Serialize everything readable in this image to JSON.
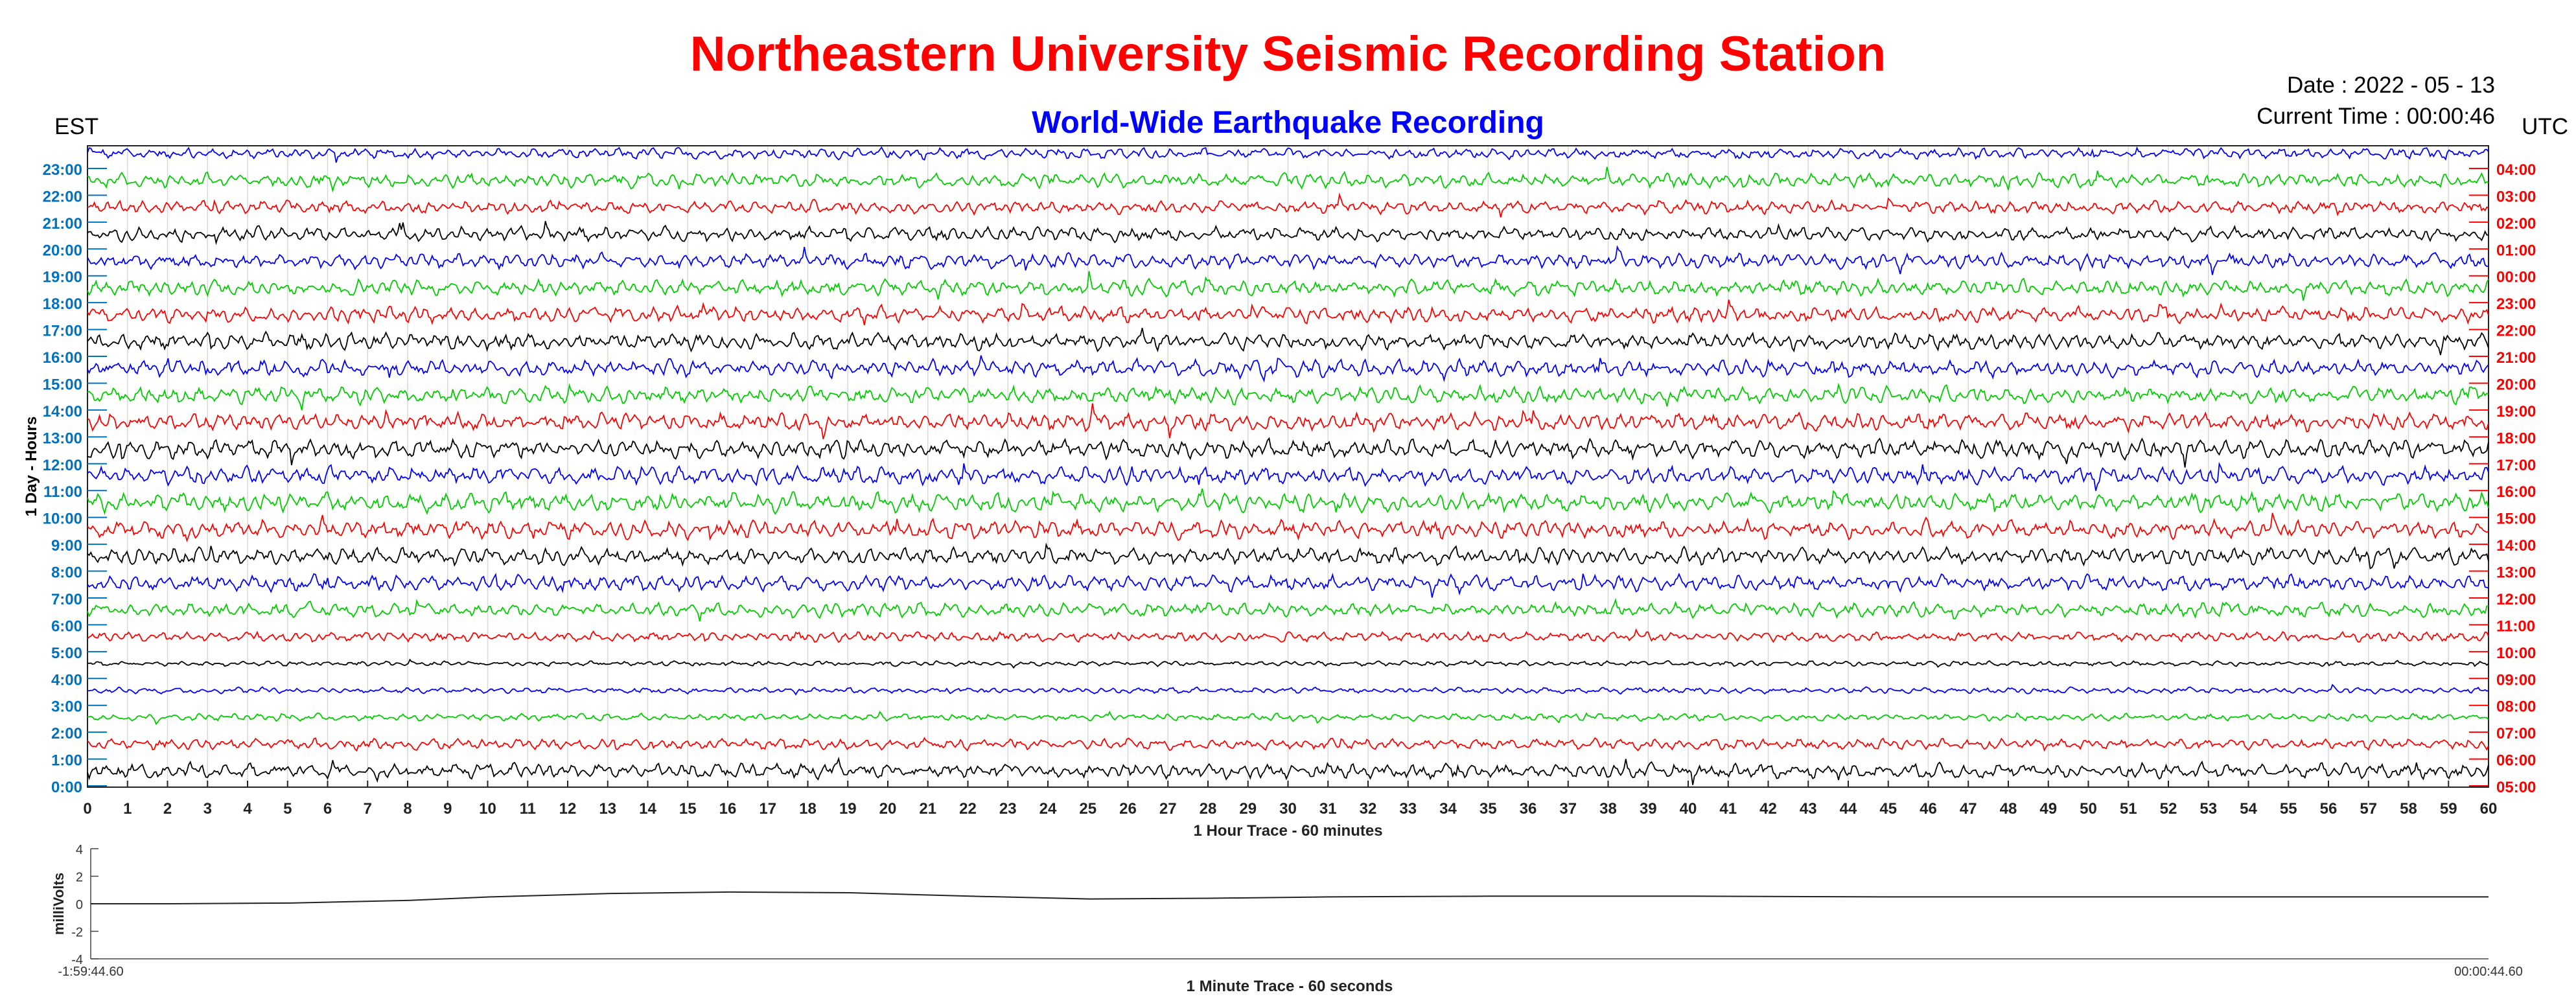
{
  "header": {
    "title": "Northeastern University Seismic Recording Station",
    "subtitle": "World-Wide Earthquake Recording",
    "date_text": "Date : 2022 - 05 - 13",
    "current_time_text": "Current Time : 00:00:46",
    "left_zone": "EST",
    "right_zone": "UTC"
  },
  "colors": {
    "title": "#ff0000",
    "subtitle": "#0000ff",
    "est_labels": "#0072bd",
    "utc_labels": "#ff0000",
    "trace_cycle": [
      "#0000ff",
      "#00cc00",
      "#ff0000",
      "#000000"
    ]
  },
  "chart_data": [
    {
      "type": "line",
      "xlabel": "1 Hour Trace - 60 minutes",
      "ylabel": "1 Day - Hours",
      "xlim": [
        0,
        60
      ],
      "x_ticks": [
        0,
        1,
        2,
        3,
        4,
        5,
        6,
        7,
        8,
        9,
        10,
        11,
        12,
        13,
        14,
        15,
        16,
        17,
        18,
        19,
        20,
        21,
        22,
        23,
        24,
        25,
        26,
        27,
        28,
        29,
        30,
        31,
        32,
        33,
        34,
        35,
        36,
        37,
        38,
        39,
        40,
        41,
        42,
        43,
        44,
        45,
        46,
        47,
        48,
        49,
        50,
        51,
        52,
        53,
        54,
        55,
        56,
        57,
        58,
        59,
        60
      ],
      "est_tick_labels": [
        "23:00",
        "22:00",
        "21:00",
        "20:00",
        "19:00",
        "18:00",
        "17:00",
        "16:00",
        "15:00",
        "14:00",
        "13:00",
        "12:00",
        "11:00",
        "10:00",
        "9:00",
        "8:00",
        "7:00",
        "6:00",
        "5:00",
        "4:00",
        "3:00",
        "2:00",
        "1:00",
        "0:00"
      ],
      "utc_tick_labels": [
        "04:00",
        "03:00",
        "02:00",
        "01:00",
        "00:00",
        "23:00",
        "22:00",
        "21:00",
        "20:00",
        "19:00",
        "18:00",
        "17:00",
        "16:00",
        "15:00",
        "14:00",
        "13:00",
        "12:00",
        "11:00",
        "10:00",
        "09:00",
        "08:00",
        "07:00",
        "06:00",
        "05:00"
      ],
      "trace_amplitude": [
        0.55,
        0.7,
        0.65,
        0.7,
        0.75,
        0.8,
        0.8,
        0.85,
        0.85,
        0.85,
        0.9,
        0.95,
        0.9,
        0.95,
        0.9,
        0.85,
        0.8,
        0.7,
        0.5,
        0.25,
        0.3,
        0.35,
        0.55,
        0.75
      ],
      "grid": true,
      "utc_offset_hours": 5
    },
    {
      "type": "line",
      "xlabel": "1 Minute Trace  - 60 seconds",
      "ylabel": "milliVolts",
      "ylim": [
        -4,
        4
      ],
      "y_ticks": [
        -4,
        -2,
        0,
        2,
        4
      ],
      "x_start_label": "-1:59:44.60",
      "x_end_label": "00:00:44.60",
      "x": [
        0,
        2,
        5,
        8,
        10,
        13,
        16,
        19,
        22,
        25,
        28,
        31,
        35,
        40,
        45,
        50,
        55,
        60
      ],
      "y": [
        0,
        0,
        0.05,
        0.25,
        0.5,
        0.75,
        0.85,
        0.8,
        0.55,
        0.35,
        0.4,
        0.5,
        0.55,
        0.55,
        0.5,
        0.5,
        0.5,
        0.5
      ]
    }
  ]
}
